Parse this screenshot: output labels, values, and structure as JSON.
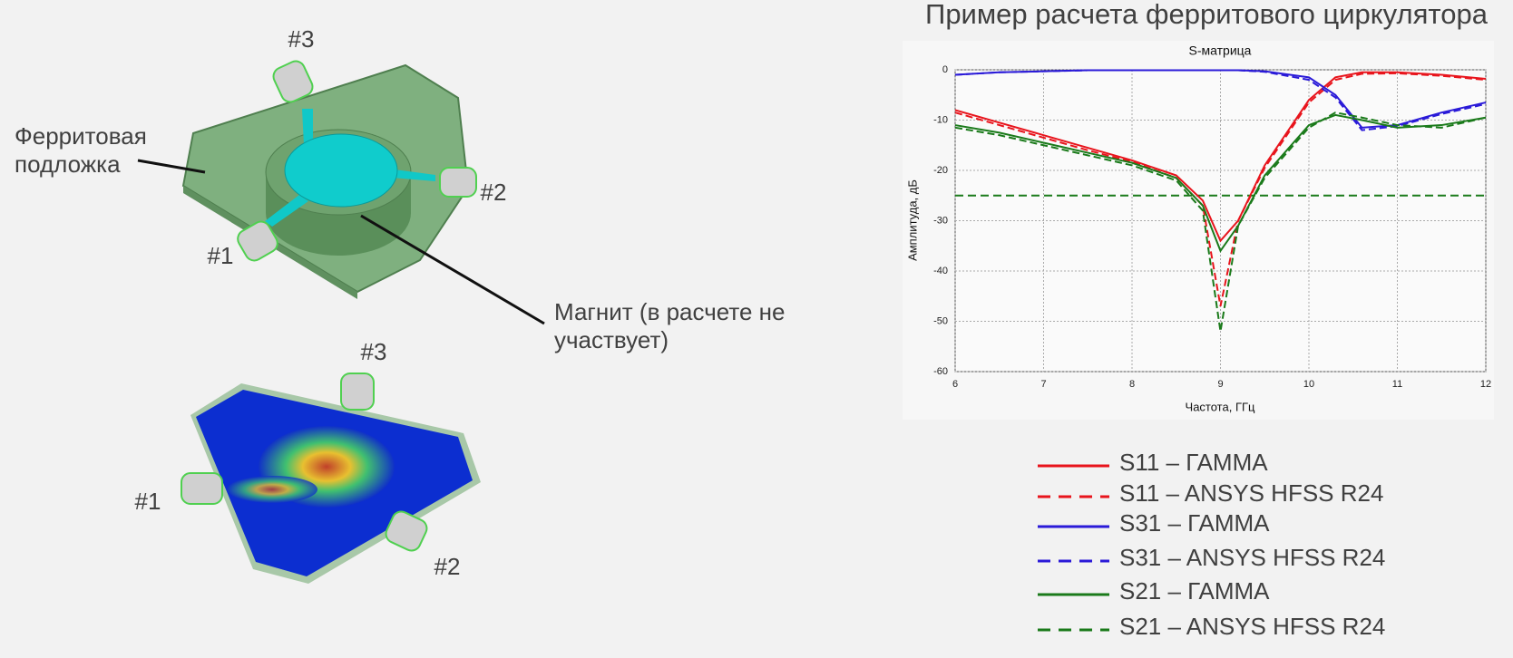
{
  "title": "Пример расчета ферритового циркулятора",
  "top_figure": {
    "ports": [
      "#3",
      "#2",
      "#1"
    ],
    "substrate_label": [
      "Ферритовая",
      "подложка"
    ],
    "magnet_label": [
      "Магнит (в расчете не",
      "участвует)"
    ]
  },
  "bottom_figure": {
    "ports": [
      "#3",
      "#1",
      "#2"
    ]
  },
  "chart_data": {
    "type": "line",
    "title": "S-матрица",
    "x_label": "Частота, ГГц",
    "y_label": "Амплитуда, дБ",
    "x": [
      6,
      6.5,
      7,
      7.5,
      8,
      8.5,
      8.8,
      9,
      9.2,
      9.5,
      10,
      10.3,
      10.6,
      11,
      11.5,
      12
    ],
    "series": [
      {
        "name": "S11 – ГАММА",
        "color": "#e8141c",
        "style": "solid",
        "values": [
          -8,
          -10.5,
          -13,
          -15.5,
          -18,
          -21,
          -26,
          -34,
          -30,
          -19,
          -6,
          -1.5,
          -0.5,
          -0.5,
          -1,
          -1.8
        ]
      },
      {
        "name": "S11 – ANSYS HFSS R24",
        "color": "#e8141c",
        "style": "dashed",
        "values": [
          -8.5,
          -11,
          -13.5,
          -16,
          -18.3,
          -21.5,
          -27,
          -47,
          -30,
          -19.5,
          -6.5,
          -2,
          -0.8,
          -0.7,
          -1.2,
          -2
        ]
      },
      {
        "name": "S31 – ГАММА",
        "color": "#2a1ad8",
        "style": "solid",
        "values": [
          -1,
          -0.5,
          -0.3,
          -0.1,
          -0.1,
          -0.1,
          -0.1,
          -0.1,
          -0.1,
          -0.3,
          -1.5,
          -5,
          -11.5,
          -11,
          -8.5,
          -6.5
        ]
      },
      {
        "name": "S31 – ANSYS HFSS R24",
        "color": "#2a1ad8",
        "style": "dashed",
        "values": [
          -1,
          -0.5,
          -0.3,
          -0.1,
          -0.1,
          -0.1,
          -0.1,
          -0.1,
          -0.1,
          -0.4,
          -2,
          -5.5,
          -12,
          -11.2,
          -8.8,
          -6.8
        ]
      },
      {
        "name": "S21 – ГАММА",
        "color": "#1a7a1a",
        "style": "solid",
        "values": [
          -11,
          -12.5,
          -14.5,
          -16.5,
          -18.5,
          -21.5,
          -27,
          -36,
          -31,
          -21,
          -11,
          -9,
          -10,
          -11.5,
          -11,
          -9.5
        ]
      },
      {
        "name": "S21 – ANSYS HFSS R24",
        "color": "#1a7a1a",
        "style": "dashed",
        "values": [
          -11.5,
          -13,
          -15,
          -17,
          -19,
          -22,
          -28,
          -52,
          -31,
          -21.5,
          -11.5,
          -8.5,
          -9.5,
          -11,
          -11.5,
          -9.5
        ]
      }
    ],
    "reference_line": {
      "value": -25,
      "color": "#1a7a1a"
    },
    "xlim": [
      6,
      12
    ],
    "xticks": [
      6,
      7,
      8,
      9,
      10,
      11,
      12
    ],
    "ylim": [
      -60,
      0
    ],
    "yticks": [
      0,
      -10,
      -20,
      -30,
      -40,
      -50,
      -60
    ],
    "grid": true
  }
}
